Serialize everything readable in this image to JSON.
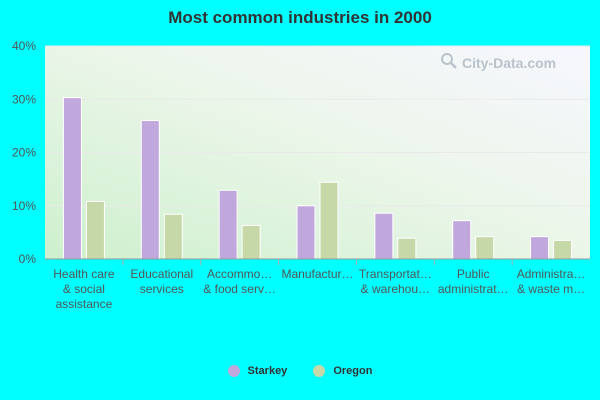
{
  "chart_data": {
    "type": "bar",
    "title": "Most common industries in 2000",
    "categories": [
      [
        "Health care",
        "& social",
        "assistance"
      ],
      [
        "Educational",
        "services"
      ],
      [
        "Accommo…",
        "& food serv…"
      ],
      [
        "Manufactur…"
      ],
      [
        "Transportat…",
        "& warehou…"
      ],
      [
        "Public",
        "administrat…"
      ],
      [
        "Administra…",
        "& waste m…"
      ]
    ],
    "series": [
      {
        "name": "Starkey",
        "color": "#c0a8dc",
        "values": [
          30.3,
          26.0,
          12.9,
          10.0,
          8.6,
          7.2,
          4.2
        ]
      },
      {
        "name": "Oregon",
        "color": "#c7d8a8",
        "values": [
          10.8,
          8.4,
          6.3,
          14.4,
          3.9,
          4.2,
          3.5
        ]
      }
    ],
    "yticks": [
      "0%",
      "10%",
      "20%",
      "30%",
      "40%"
    ],
    "ylim": [
      0,
      40
    ],
    "legend_position": "bottom",
    "grid": true
  },
  "watermark": {
    "text": "City-Data.com",
    "icon": "magnifier-icon"
  }
}
